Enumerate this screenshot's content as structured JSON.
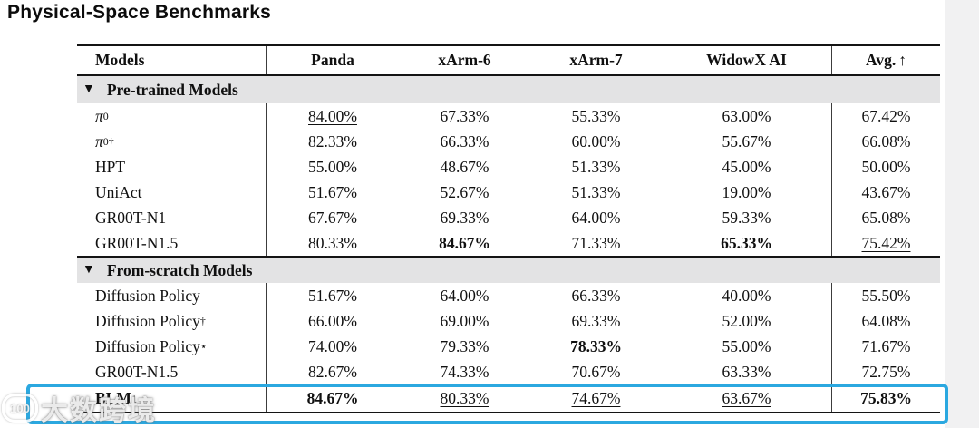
{
  "page": {
    "title": "Physical-Space Benchmarks"
  },
  "table": {
    "columns": [
      "Models",
      "Panda",
      "xArm-6",
      "xArm-7",
      "WidowX AI",
      "Avg."
    ],
    "avg_arrow": "↑",
    "sections": [
      {
        "marker": "▼",
        "label": "Pre-trained Models",
        "rows": [
          {
            "name": {
              "base": "π",
              "sub": "0",
              "sup": ""
            },
            "cells": [
              "84.00%",
              "67.33%",
              "55.33%",
              "63.00%",
              "67.42%"
            ]
          },
          {
            "name": {
              "base": "π",
              "sub": "0",
              "sup": "†"
            },
            "cells": [
              "82.33%",
              "66.33%",
              "60.00%",
              "55.67%",
              "66.08%"
            ]
          },
          {
            "name": {
              "base": "HPT",
              "sub": "",
              "sup": ""
            },
            "cells": [
              "55.00%",
              "48.67%",
              "51.33%",
              "45.00%",
              "50.00%"
            ]
          },
          {
            "name": {
              "base": "UniAct",
              "sub": "",
              "sup": ""
            },
            "cells": [
              "51.67%",
              "52.67%",
              "51.33%",
              "19.00%",
              "43.67%"
            ]
          },
          {
            "name": {
              "base": "GR00T-N1",
              "sub": "",
              "sup": ""
            },
            "cells": [
              "67.67%",
              "69.33%",
              "64.00%",
              "59.33%",
              "65.08%"
            ]
          },
          {
            "name": {
              "base": "GR00T-N1.5",
              "sub": "",
              "sup": ""
            },
            "cells": [
              "80.33%",
              "84.67%",
              "71.33%",
              "65.33%",
              "75.42%"
            ]
          }
        ]
      },
      {
        "marker": "▼",
        "label": "From-scratch Models",
        "rows": [
          {
            "name": {
              "base": "Diffusion Policy",
              "sub": "",
              "sup": ""
            },
            "cells": [
              "51.67%",
              "64.00%",
              "66.33%",
              "40.00%",
              "55.50%"
            ]
          },
          {
            "name": {
              "base": "Diffusion Policy",
              "sub": "",
              "sup": "†"
            },
            "cells": [
              "66.00%",
              "69.00%",
              "69.33%",
              "52.00%",
              "64.08%"
            ]
          },
          {
            "name": {
              "base": "Diffusion Policy",
              "sub": "",
              "sup": "⋆"
            },
            "cells": [
              "74.00%",
              "79.33%",
              "78.33%",
              "55.00%",
              "71.67%"
            ]
          },
          {
            "name": {
              "base": "GR00T-N1.5",
              "sub": "",
              "sup": ""
            },
            "cells": [
              "82.67%",
              "74.33%",
              "70.67%",
              "63.33%",
              "72.75%"
            ]
          }
        ]
      }
    ],
    "final": {
      "name": {
        "base": "BLM",
        "sub": "1",
        "sup": ""
      },
      "cells": [
        "84.67%",
        "80.33%",
        "74.67%",
        "63.67%",
        "75.83%"
      ]
    }
  },
  "watermark": {
    "logo_text": "100",
    "text": "大数跨境"
  },
  "colors": {
    "highlight_box": "#2ba8e0",
    "section_band": "#e3e3e4",
    "rule": "#141414",
    "page_margin": "#f1f1f2"
  }
}
